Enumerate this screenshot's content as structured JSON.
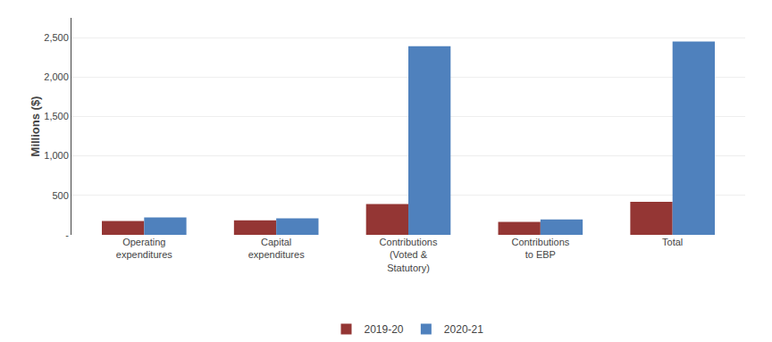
{
  "chart_data": {
    "type": "bar",
    "categories": [
      "Operating\nexpenditures",
      "Capital\nexpenditures",
      "Contributions\n(Voted &\nStatutory)",
      "Contributions\nto EBP",
      "Total"
    ],
    "series": [
      {
        "name": "2019-20",
        "color": "#943634",
        "values": [
          175,
          185,
          390,
          165,
          420
        ]
      },
      {
        "name": "2020-21",
        "color": "#4F81BD",
        "values": [
          220,
          210,
          2390,
          195,
          2450
        ]
      }
    ],
    "ylabel": "Millions ($)",
    "ylim": [
      0,
      2750
    ],
    "yticks": [
      {
        "value": 0,
        "label": "-"
      },
      500,
      {
        "value": 1000,
        "label": "1,000"
      },
      {
        "value": 1500,
        "label": "1,500"
      },
      {
        "value": 2000,
        "label": "2,000"
      },
      {
        "value": 2500,
        "label": "2,500"
      }
    ],
    "grid": true,
    "legend": "bottom"
  }
}
